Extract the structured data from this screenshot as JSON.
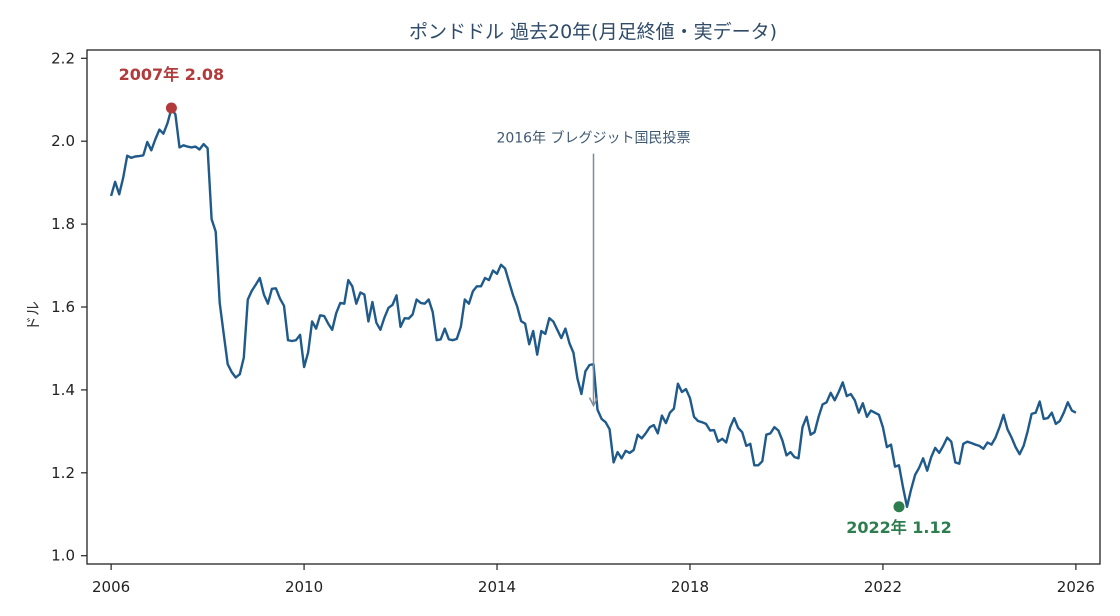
{
  "chart_data": {
    "type": "line",
    "title": "ポンドドル 過去20年(月足終値・実データ)",
    "xlabel": "",
    "ylabel": "ドル",
    "xlim": [
      2005.5,
      2026.5
    ],
    "ylim": [
      0.98,
      2.22
    ],
    "x_ticks": [
      2006,
      2010,
      2014,
      2018,
      2022,
      2026
    ],
    "y_ticks": [
      "1.0",
      "1.2",
      "1.4",
      "1.6",
      "1.8",
      "2.0",
      "2.2"
    ],
    "grid": false,
    "line_color": "#1f5a8a",
    "series": [
      {
        "x": [
          2006.0,
          2006.083,
          2006.167,
          2006.25,
          2006.333,
          2006.417,
          2006.5,
          2006.583,
          2006.667,
          2006.75,
          2006.833,
          2006.917,
          2007.0,
          2007.083,
          2007.167,
          2007.25,
          2007.333,
          2007.417,
          2007.5,
          2007.583,
          2007.667,
          2007.75,
          2007.833,
          2007.917,
          2008.0,
          2008.083,
          2008.167,
          2008.25,
          2008.333,
          2008.417,
          2008.5,
          2008.583,
          2008.667,
          2008.75,
          2008.833,
          2008.917,
          2009.0,
          2009.083,
          2009.167,
          2009.25,
          2009.333,
          2009.417,
          2009.5,
          2009.583,
          2009.667,
          2009.75,
          2009.833,
          2009.917,
          2010.0,
          2010.083,
          2010.167,
          2010.25,
          2010.333,
          2010.417,
          2010.5,
          2010.583,
          2010.667,
          2010.75,
          2010.833,
          2010.917,
          2011.0,
          2011.083,
          2011.167,
          2011.25,
          2011.333,
          2011.417,
          2011.5,
          2011.583,
          2011.667,
          2011.75,
          2011.833,
          2011.917,
          2012.0,
          2012.083,
          2012.167,
          2012.25,
          2012.333,
          2012.417,
          2012.5,
          2012.583,
          2012.667,
          2012.75,
          2012.833,
          2012.917,
          2013.0,
          2013.083,
          2013.167,
          2013.25,
          2013.333,
          2013.417,
          2013.5,
          2013.583,
          2013.667,
          2013.75,
          2013.833,
          2013.917,
          2014.0,
          2014.083,
          2014.167,
          2014.25,
          2014.333,
          2014.417,
          2014.5,
          2014.583,
          2014.667,
          2014.75,
          2014.833,
          2014.917,
          2015.0,
          2015.083,
          2015.167,
          2015.25,
          2015.333,
          2015.417,
          2015.5,
          2015.583,
          2015.667,
          2015.75,
          2015.833,
          2015.917,
          2016.0,
          2016.083,
          2016.167,
          2016.25,
          2016.333,
          2016.417,
          2016.5,
          2016.583,
          2016.667,
          2016.75,
          2016.833,
          2016.917,
          2017.0,
          2017.083,
          2017.167,
          2017.25,
          2017.333,
          2017.417,
          2017.5,
          2017.583,
          2017.667,
          2017.75,
          2017.833,
          2017.917,
          2018.0,
          2018.083,
          2018.167,
          2018.25,
          2018.333,
          2018.417,
          2018.5,
          2018.583,
          2018.667,
          2018.75,
          2018.833,
          2018.917,
          2019.0,
          2019.083,
          2019.167,
          2019.25,
          2019.333,
          2019.417,
          2019.5,
          2019.583,
          2019.667,
          2019.75,
          2019.833,
          2019.917,
          2020.0,
          2020.083,
          2020.167,
          2020.25,
          2020.333,
          2020.417,
          2020.5,
          2020.583,
          2020.667,
          2020.75,
          2020.833,
          2020.917,
          2021.0,
          2021.083,
          2021.167,
          2021.25,
          2021.333,
          2021.417,
          2021.5,
          2021.583,
          2021.667,
          2021.75,
          2021.833,
          2021.917,
          2022.0,
          2022.083,
          2022.167,
          2022.25,
          2022.333,
          2022.417,
          2022.5,
          2022.583,
          2022.667,
          2022.75,
          2022.833,
          2022.917,
          2023.0,
          2023.083,
          2023.167,
          2023.25,
          2023.333,
          2023.417,
          2023.5,
          2023.583,
          2023.667,
          2023.75,
          2023.833,
          2023.917,
          2024.0,
          2024.083,
          2024.167,
          2024.25,
          2024.333,
          2024.417,
          2024.5,
          2024.583,
          2024.667,
          2024.75,
          2024.833,
          2024.917,
          2025.0,
          2025.083,
          2025.167,
          2025.25,
          2025.333,
          2025.417,
          2025.5,
          2025.583,
          2025.667,
          2025.75,
          2025.833,
          2025.917,
          2026.0
        ],
        "y": [
          1.868,
          1.902,
          1.872,
          1.912,
          1.965,
          1.96,
          1.963,
          1.964,
          1.966,
          1.998,
          1.978,
          2.005,
          2.028,
          2.018,
          2.043,
          2.078,
          2.065,
          1.985,
          1.99,
          1.987,
          1.985,
          1.987,
          1.98,
          1.993,
          1.983,
          1.812,
          1.782,
          1.61,
          1.535,
          1.462,
          1.443,
          1.43,
          1.438,
          1.478,
          1.618,
          1.639,
          1.654,
          1.67,
          1.63,
          1.608,
          1.644,
          1.645,
          1.62,
          1.603,
          1.52,
          1.518,
          1.52,
          1.533,
          1.455,
          1.49,
          1.565,
          1.548,
          1.58,
          1.578,
          1.56,
          1.545,
          1.585,
          1.61,
          1.608,
          1.665,
          1.65,
          1.608,
          1.635,
          1.63,
          1.565,
          1.612,
          1.562,
          1.545,
          1.575,
          1.598,
          1.605,
          1.628,
          1.552,
          1.573,
          1.572,
          1.582,
          1.618,
          1.61,
          1.608,
          1.618,
          1.588,
          1.52,
          1.522,
          1.548,
          1.522,
          1.52,
          1.523,
          1.552,
          1.618,
          1.608,
          1.638,
          1.65,
          1.65,
          1.67,
          1.665,
          1.688,
          1.68,
          1.702,
          1.693,
          1.66,
          1.628,
          1.602,
          1.566,
          1.56,
          1.51,
          1.542,
          1.485,
          1.542,
          1.535,
          1.573,
          1.565,
          1.545,
          1.525,
          1.548,
          1.513,
          1.49,
          1.428,
          1.39,
          1.445,
          1.46,
          1.462,
          1.352,
          1.33,
          1.322,
          1.305,
          1.225,
          1.25,
          1.235,
          1.253,
          1.248,
          1.255,
          1.292,
          1.283,
          1.295,
          1.31,
          1.315,
          1.295,
          1.338,
          1.32,
          1.345,
          1.355,
          1.415,
          1.395,
          1.402,
          1.38,
          1.335,
          1.325,
          1.322,
          1.318,
          1.302,
          1.303,
          1.275,
          1.282,
          1.273,
          1.31,
          1.332,
          1.308,
          1.298,
          1.265,
          1.27,
          1.218,
          1.218,
          1.228,
          1.292,
          1.295,
          1.31,
          1.302,
          1.278,
          1.242,
          1.25,
          1.238,
          1.235,
          1.31,
          1.335,
          1.292,
          1.298,
          1.335,
          1.365,
          1.37,
          1.393,
          1.375,
          1.395,
          1.418,
          1.385,
          1.39,
          1.375,
          1.345,
          1.368,
          1.335,
          1.35,
          1.345,
          1.34,
          1.31,
          1.262,
          1.268,
          1.215,
          1.218,
          1.165,
          1.118,
          1.16,
          1.195,
          1.212,
          1.235,
          1.205,
          1.238,
          1.26,
          1.248,
          1.265,
          1.285,
          1.275,
          1.225,
          1.222,
          1.27,
          1.275,
          1.272,
          1.268,
          1.265,
          1.258,
          1.273,
          1.268,
          1.285,
          1.31,
          1.34,
          1.305,
          1.285,
          1.262,
          1.245,
          1.265,
          1.3,
          1.342,
          1.345,
          1.372,
          1.33,
          1.332,
          1.345,
          1.318,
          1.325,
          1.345,
          1.37,
          1.35,
          1.345
        ]
      }
    ],
    "annotations": {
      "max": {
        "text": "2007年 2.08",
        "x": 2007.25,
        "y": 2.08,
        "color": "#b23a3a"
      },
      "min": {
        "text": "2022年 1.12",
        "x": 2022.333,
        "y": 1.118,
        "color": "#2e7d4f"
      },
      "event": {
        "text": "2016年 ブレグジット国民投票",
        "x": 2016.0,
        "y": 1.35
      }
    }
  }
}
